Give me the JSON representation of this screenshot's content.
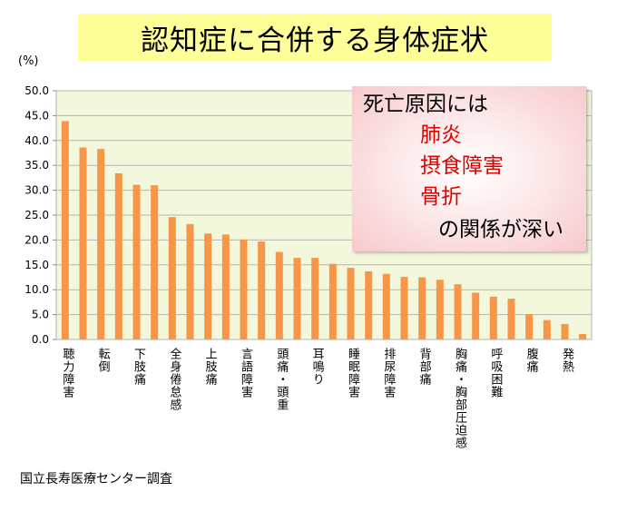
{
  "header": {
    "title": "認知症に合併する身体症状"
  },
  "unit_label": "(%)",
  "callout": {
    "line1": "死亡原因には",
    "item1": "肺炎",
    "item2": "摂食障害",
    "item3": "骨折",
    "line5": "の関係が深い"
  },
  "source": "国立長寿医療センター調査",
  "colors": {
    "bar": "#f79646",
    "plot_bg": "#f3f8dc",
    "title_bg": "#ffff99",
    "highlight": "#e00000"
  },
  "chart_data": {
    "type": "bar",
    "title": "認知症に合併する身体症状",
    "ylabel": "(%)",
    "xlabel": "",
    "ylim": [
      0,
      50
    ],
    "yticks": [
      "0.0",
      "5.0",
      "10.0",
      "15.0",
      "20.0",
      "25.0",
      "30.0",
      "35.0",
      "40.0",
      "45.0",
      "50.0"
    ],
    "grid": true,
    "labeled_categories": [
      "聴力障害",
      "転倒",
      "下肢痛",
      "全身倦怠感",
      "上肢痛",
      "言語障害",
      "頭痛・頭重",
      "耳鳴り",
      "睡眠障害",
      "排尿障害",
      "背部痛",
      "胸痛・胸部圧迫感",
      "呼吸困難",
      "腹痛",
      "発熱"
    ],
    "values": [
      43.9,
      38.6,
      38.3,
      33.4,
      31.1,
      31.0,
      24.6,
      23.2,
      21.3,
      21.1,
      20.1,
      19.7,
      17.6,
      16.4,
      16.4,
      15.2,
      14.4,
      13.7,
      13.2,
      12.6,
      12.5,
      12.0,
      11.1,
      9.4,
      8.6,
      8.2,
      5.1,
      3.9,
      3.1,
      1.1
    ]
  }
}
